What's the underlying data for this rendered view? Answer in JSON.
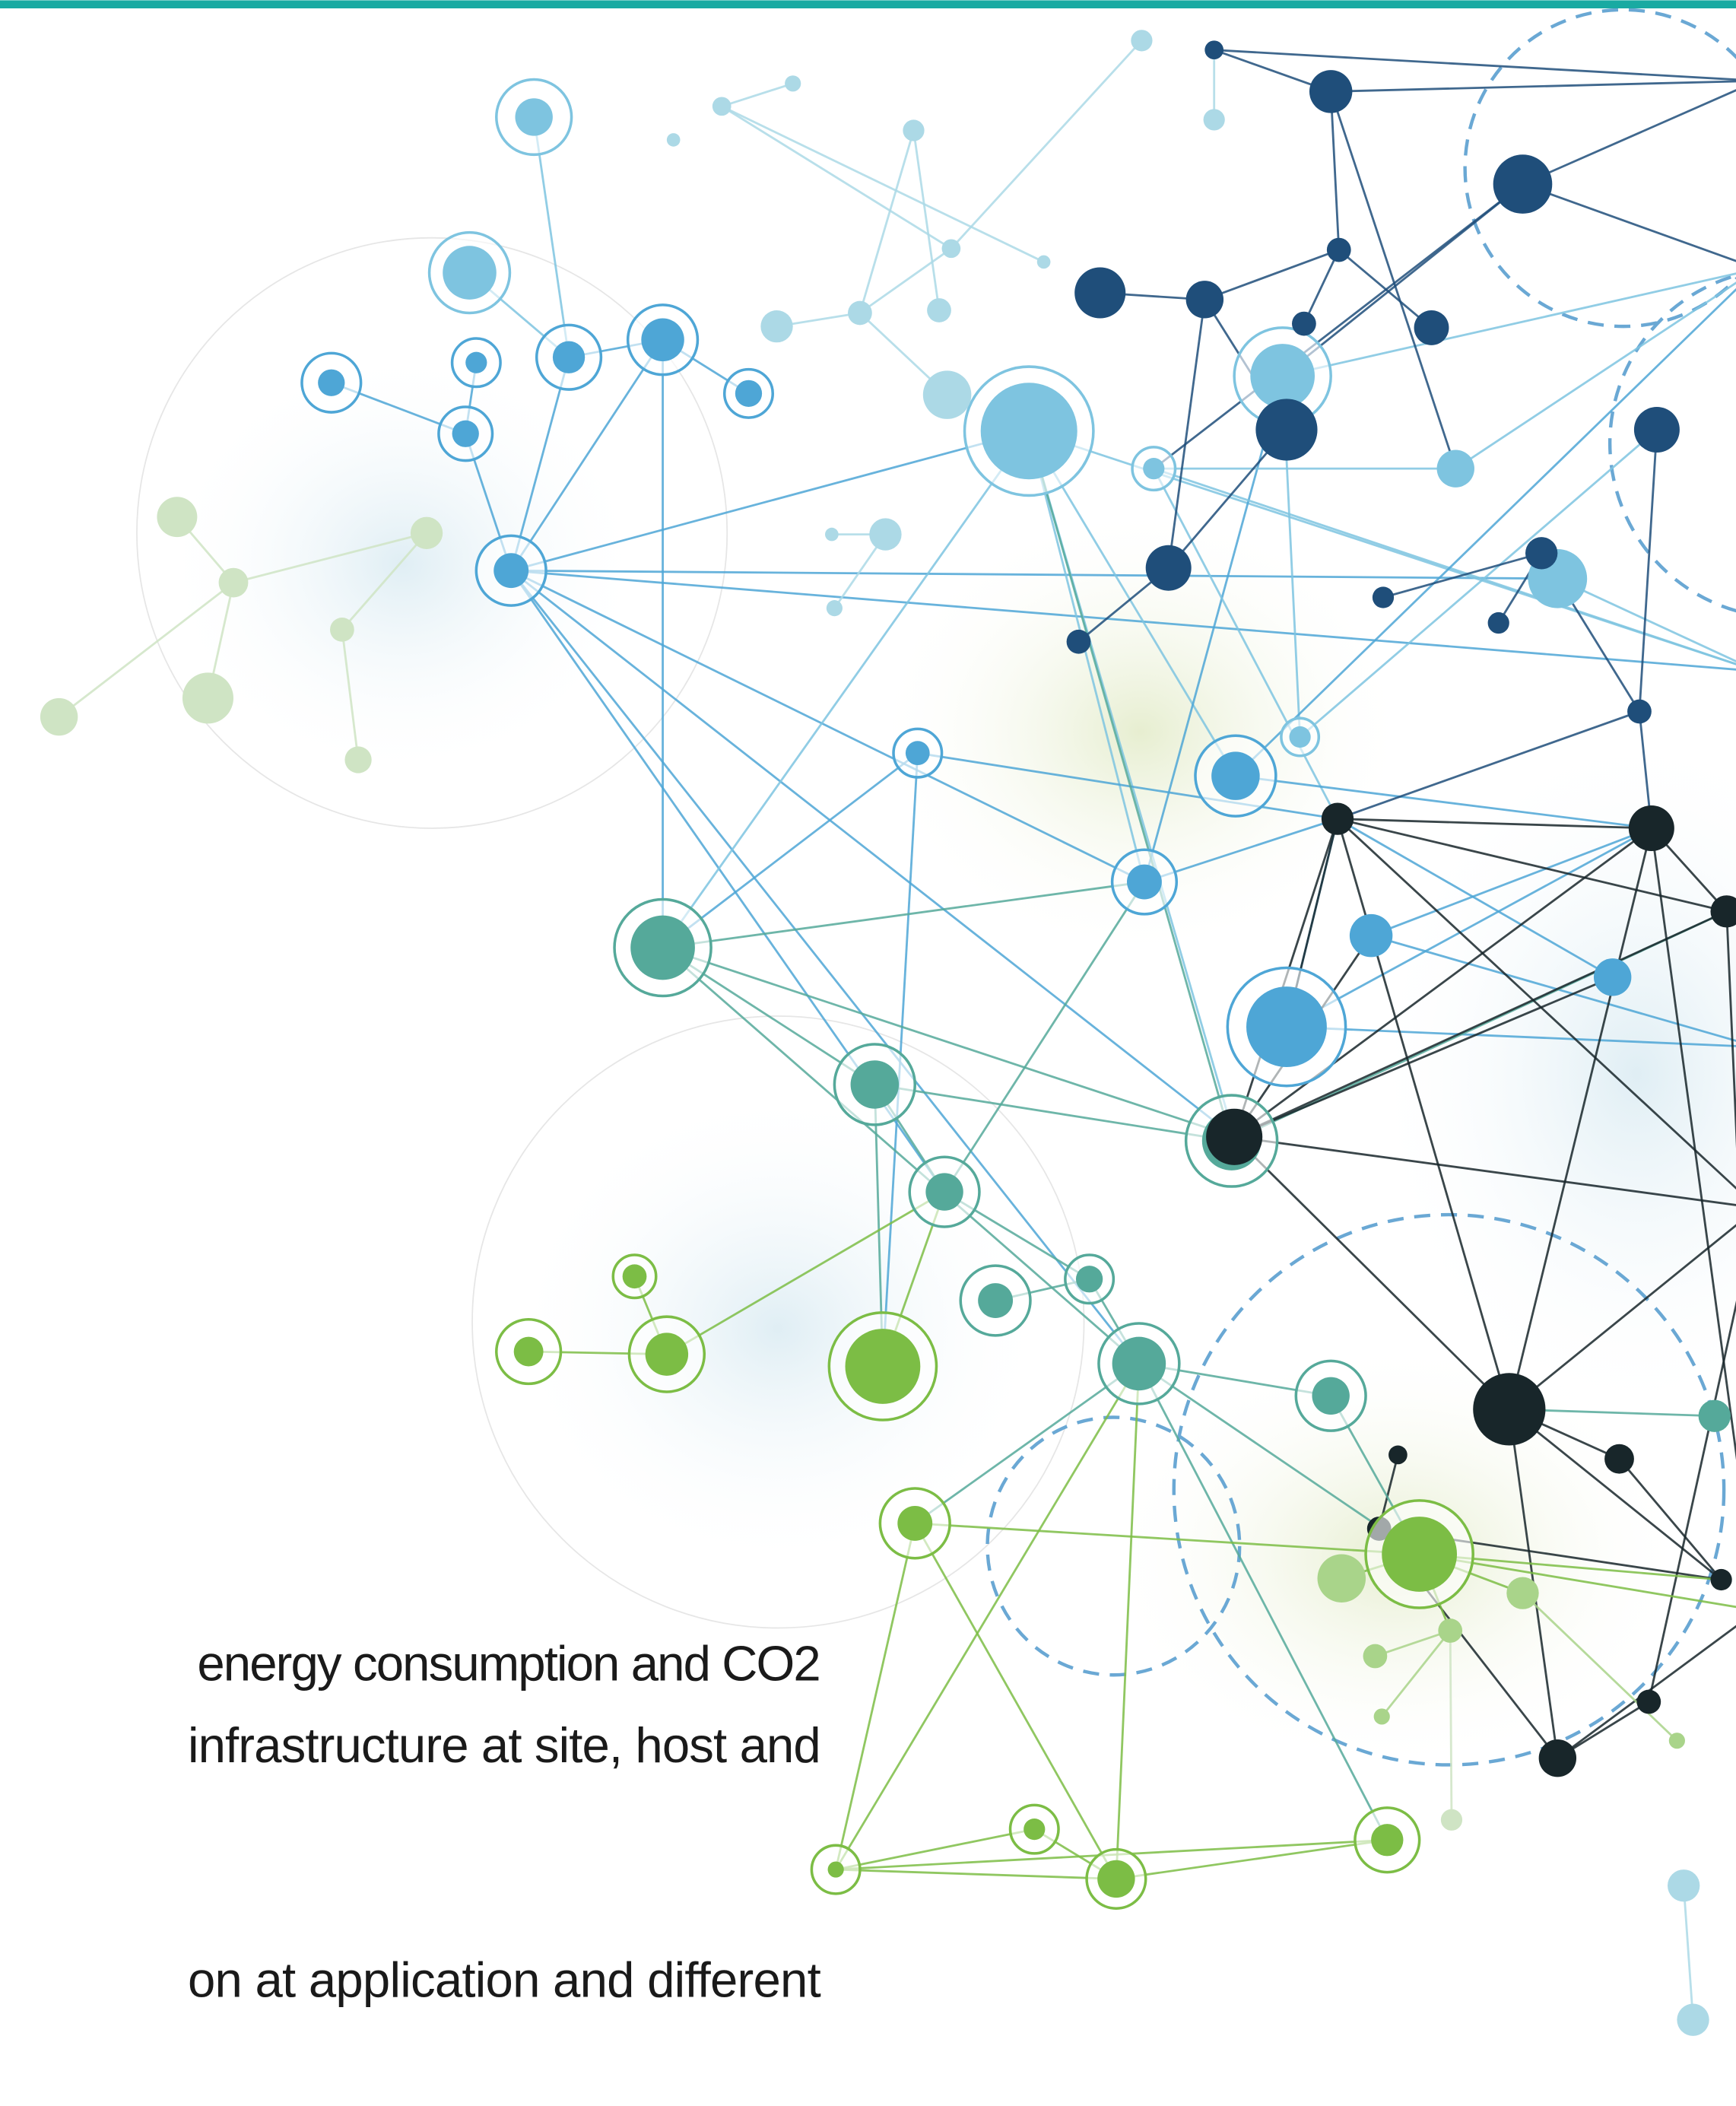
{
  "document": {
    "lines": [
      "energy consumption and CO2",
      "infrastructure at site, host and",
      "on at application and different"
    ]
  }
}
